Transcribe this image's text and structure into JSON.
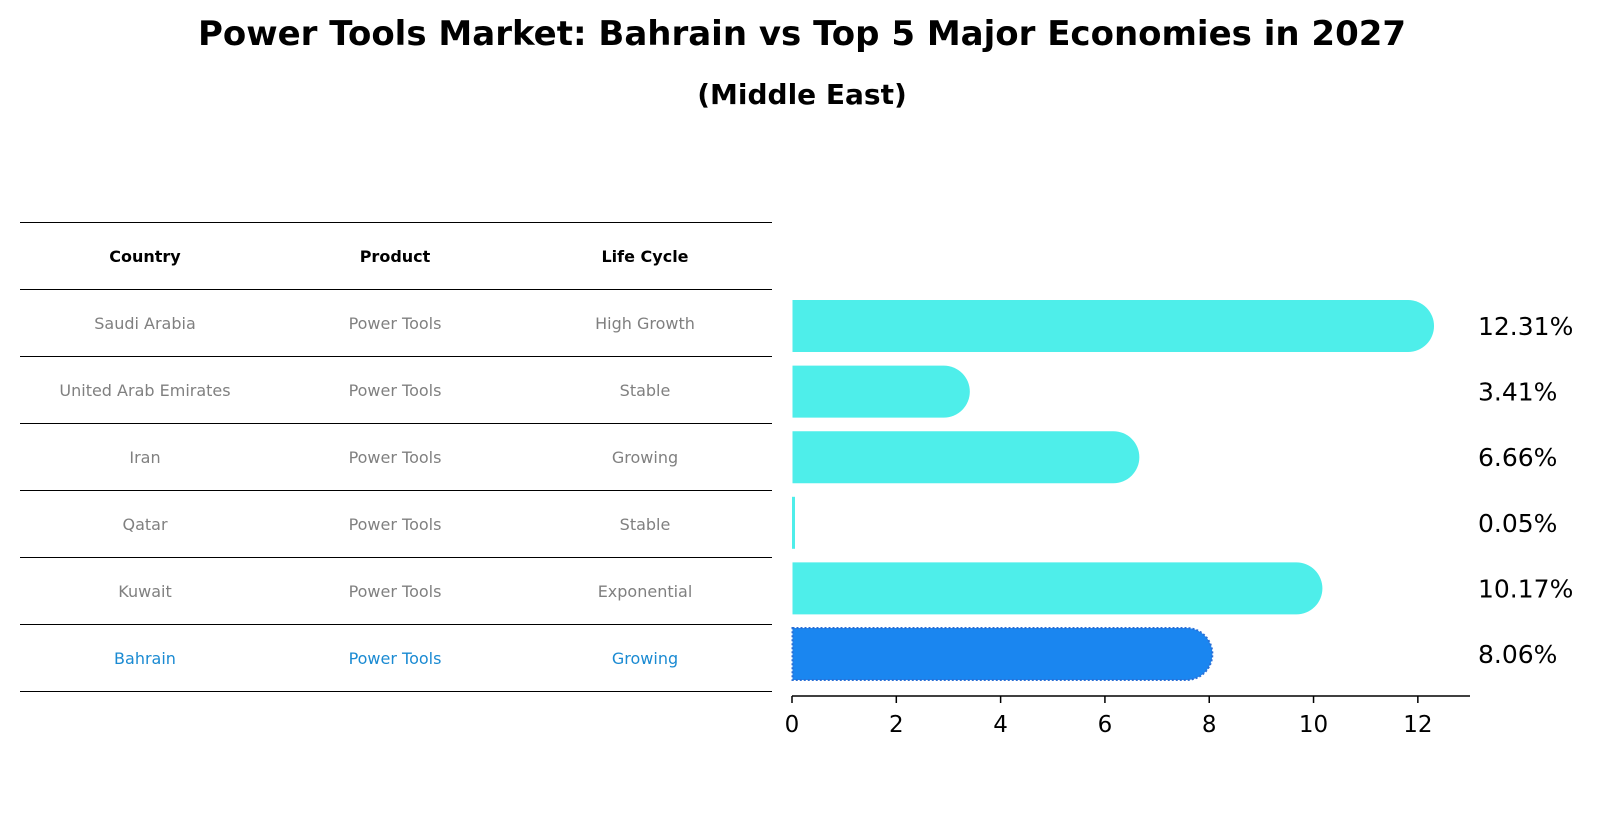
{
  "title": "Power Tools Market: Bahrain vs Top 5 Major Economies in 2027",
  "subtitle": "(Middle East)",
  "table": {
    "headers": [
      "Country",
      "Product",
      "Life Cycle"
    ],
    "rows": [
      {
        "country": "Saudi Arabia",
        "product": "Power Tools",
        "life_cycle": "High Growth"
      },
      {
        "country": "United Arab Emirates",
        "product": "Power Tools",
        "life_cycle": "Stable"
      },
      {
        "country": "Iran",
        "product": "Power Tools",
        "life_cycle": "Growing"
      },
      {
        "country": "Qatar",
        "product": "Power Tools",
        "life_cycle": "Stable"
      },
      {
        "country": "Kuwait",
        "product": "Power Tools",
        "life_cycle": "Exponential"
      },
      {
        "country": "Bahrain",
        "product": "Power Tools",
        "life_cycle": "Growing"
      }
    ]
  },
  "chart_data": {
    "type": "bar",
    "orientation": "horizontal",
    "categories": [
      "Saudi Arabia",
      "United Arab Emirates",
      "Iran",
      "Qatar",
      "Kuwait",
      "Bahrain"
    ],
    "values": [
      12.31,
      3.41,
      6.66,
      0.05,
      10.17,
      8.06
    ],
    "value_labels": [
      "12.31%",
      "3.41%",
      "6.66%",
      "0.05%",
      "10.17%",
      "8.06%"
    ],
    "xlim": [
      0,
      13
    ],
    "xticks": [
      0,
      2,
      4,
      6,
      8,
      10,
      12
    ],
    "grid": false,
    "highlight_category": "Bahrain",
    "colors": {
      "default": "#4eeeea",
      "highlight": "#1a86f0",
      "highlight_text": "#1a8ad2"
    }
  }
}
